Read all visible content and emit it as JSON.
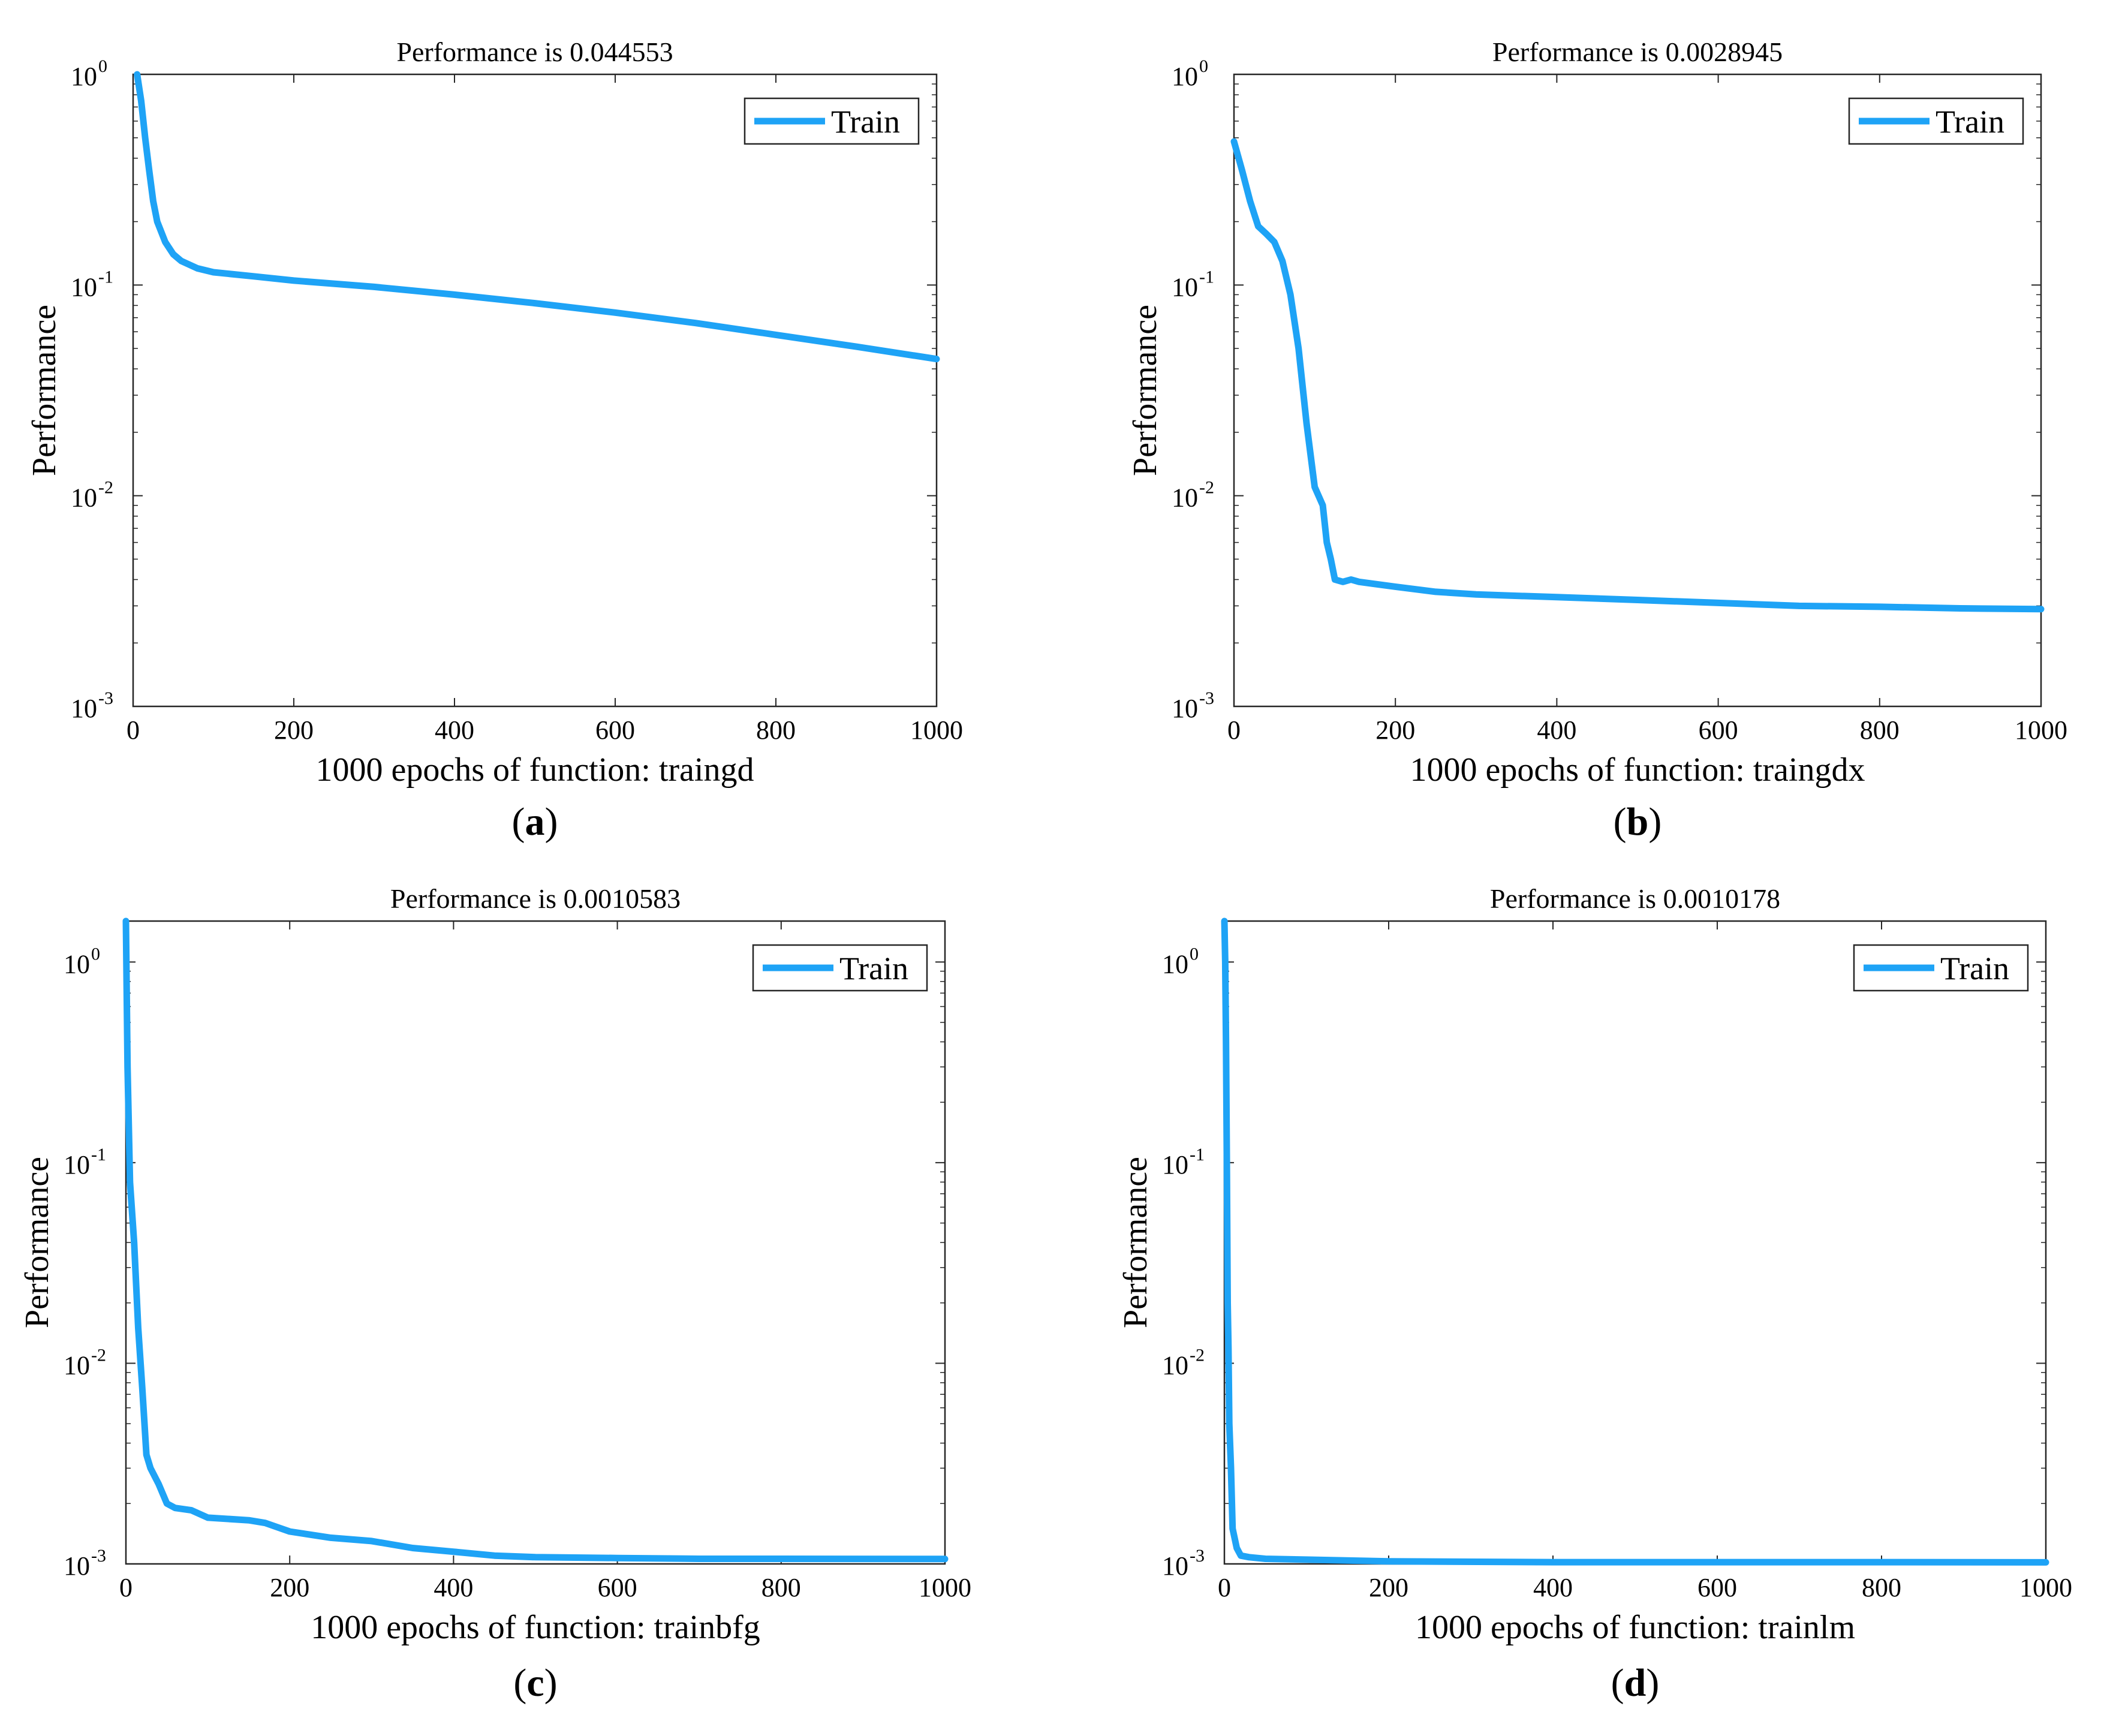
{
  "series_color": "#1ea3f6",
  "chart_data": [
    {
      "id": "a",
      "type": "line",
      "title": "Performance is 0.044553",
      "xlabel": "1000 epochs of function: traingd",
      "ylabel": "Performance",
      "yscale": "log",
      "xlim": [
        0,
        1000
      ],
      "ylim": [
        0.001,
        1
      ],
      "xticks": [
        "0",
        "200",
        "400",
        "600",
        "800",
        "1000"
      ],
      "yticks": [
        {
          "base": "10",
          "exp": "0"
        },
        {
          "base": "10",
          "exp": "-1"
        },
        {
          "base": "10",
          "exp": "-2"
        },
        {
          "base": "10",
          "exp": "-3"
        }
      ],
      "caption_letter": "a",
      "legend": [
        "Train"
      ],
      "legend_position": "top-right",
      "series": [
        {
          "name": "Train",
          "x": [
            5,
            10,
            15,
            20,
            25,
            30,
            40,
            50,
            60,
            80,
            100,
            150,
            200,
            300,
            400,
            500,
            600,
            700,
            800,
            900,
            1000
          ],
          "y": [
            1.0,
            0.75,
            0.5,
            0.35,
            0.25,
            0.2,
            0.16,
            0.14,
            0.13,
            0.12,
            0.115,
            0.11,
            0.105,
            0.098,
            0.09,
            0.082,
            0.074,
            0.066,
            0.058,
            0.051,
            0.044553
          ]
        }
      ]
    },
    {
      "id": "b",
      "type": "line",
      "title": "Performance is 0.0028945",
      "xlabel": "1000 epochs of function: traingdx",
      "ylabel": "Performance",
      "yscale": "log",
      "xlim": [
        0,
        1000
      ],
      "ylim": [
        0.001,
        1
      ],
      "xticks": [
        "0",
        "200",
        "400",
        "600",
        "800",
        "1000"
      ],
      "yticks": [
        {
          "base": "10",
          "exp": "0"
        },
        {
          "base": "10",
          "exp": "-1"
        },
        {
          "base": "10",
          "exp": "-2"
        },
        {
          "base": "10",
          "exp": "-3"
        }
      ],
      "caption_letter": "b",
      "legend": [
        "Train"
      ],
      "legend_position": "top-right",
      "series": [
        {
          "name": "Train",
          "x": [
            0,
            10,
            20,
            30,
            40,
            50,
            60,
            70,
            80,
            90,
            100,
            110,
            115,
            120,
            125,
            135,
            145,
            155,
            200,
            250,
            300,
            400,
            500,
            600,
            700,
            800,
            900,
            1000
          ],
          "y": [
            0.48,
            0.35,
            0.25,
            0.19,
            0.175,
            0.16,
            0.13,
            0.09,
            0.05,
            0.022,
            0.011,
            0.009,
            0.006,
            0.005,
            0.004,
            0.0039,
            0.004,
            0.0039,
            0.0037,
            0.0035,
            0.0034,
            0.0033,
            0.0032,
            0.0031,
            0.003,
            0.00297,
            0.00292,
            0.0028945
          ]
        }
      ]
    },
    {
      "id": "c",
      "type": "line",
      "title": "Performance is 0.0010583",
      "xlabel": "1000 epochs of function: trainbfg",
      "ylabel": "Performance",
      "yscale": "log",
      "xlim": [
        0,
        1000
      ],
      "ylim": [
        0.001,
        1.6
      ],
      "xticks": [
        "0",
        "200",
        "400",
        "600",
        "800",
        "1000"
      ],
      "yticks": [
        {
          "base": "10",
          "exp": "0"
        },
        {
          "base": "10",
          "exp": "-1"
        },
        {
          "base": "10",
          "exp": "-2"
        },
        {
          "base": "10",
          "exp": "-3"
        }
      ],
      "caption_letter": "c",
      "legend": [
        "Train"
      ],
      "legend_position": "top-right",
      "series": [
        {
          "name": "Train",
          "x": [
            0,
            2,
            5,
            10,
            15,
            20,
            25,
            30,
            40,
            50,
            60,
            80,
            100,
            150,
            170,
            200,
            250,
            300,
            350,
            400,
            450,
            500,
            600,
            700,
            800,
            1000
          ],
          "y": [
            1.6,
            0.3,
            0.08,
            0.04,
            0.015,
            0.0075,
            0.0035,
            0.003,
            0.0025,
            0.002,
            0.0019,
            0.00185,
            0.0017,
            0.00165,
            0.0016,
            0.00145,
            0.00135,
            0.0013,
            0.0012,
            0.00115,
            0.0011,
            0.00108,
            0.00107,
            0.00106,
            0.00106,
            0.0010583
          ]
        }
      ]
    },
    {
      "id": "d",
      "type": "line",
      "title": "Performance is 0.0010178",
      "xlabel": "1000 epochs of function: trainlm",
      "ylabel": "Performance",
      "yscale": "log",
      "xlim": [
        0,
        1000
      ],
      "ylim": [
        0.001,
        1.6
      ],
      "xticks": [
        "0",
        "200",
        "400",
        "600",
        "800",
        "1000"
      ],
      "yticks": [
        {
          "base": "10",
          "exp": "0"
        },
        {
          "base": "10",
          "exp": "-1"
        },
        {
          "base": "10",
          "exp": "-2"
        },
        {
          "base": "10",
          "exp": "-3"
        }
      ],
      "caption_letter": "d",
      "legend": [
        "Train"
      ],
      "legend_position": "top-right",
      "series": [
        {
          "name": "Train",
          "x": [
            0,
            1,
            2,
            3,
            4,
            5,
            6,
            8,
            10,
            15,
            20,
            30,
            50,
            100,
            200,
            400,
            600,
            800,
            1000
          ],
          "y": [
            1.6,
            1.0,
            0.4,
            0.1,
            0.02,
            0.012,
            0.005,
            0.003,
            0.0015,
            0.0012,
            0.0011,
            0.00108,
            0.00106,
            0.00105,
            0.00103,
            0.00102,
            0.00102,
            0.00102,
            0.0010178
          ]
        }
      ]
    }
  ]
}
